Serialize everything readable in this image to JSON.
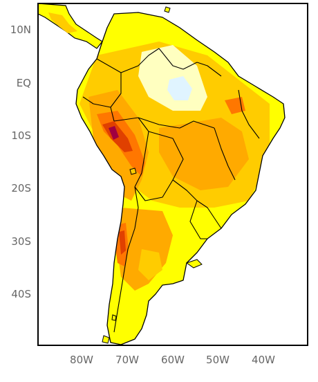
{
  "map": {
    "lat_labels": [
      "10N",
      "EQ",
      "10S",
      "20S",
      "30S",
      "40S"
    ],
    "lon_labels": [
      "80W",
      "70W",
      "60W",
      "50W",
      "40W"
    ],
    "colors": {
      "background": "#ffffff",
      "yellow": "#ffff00",
      "light_orange": "#ffcc00",
      "orange": "#ffaa00",
      "dark_orange": "#ff7700",
      "red": "#e04000",
      "dark_red": "#a00040",
      "pale_yellow": "#ffffc0",
      "light_blue": "#e0f4ff",
      "boundary": "#000000",
      "tick_label": "#666666"
    }
  }
}
